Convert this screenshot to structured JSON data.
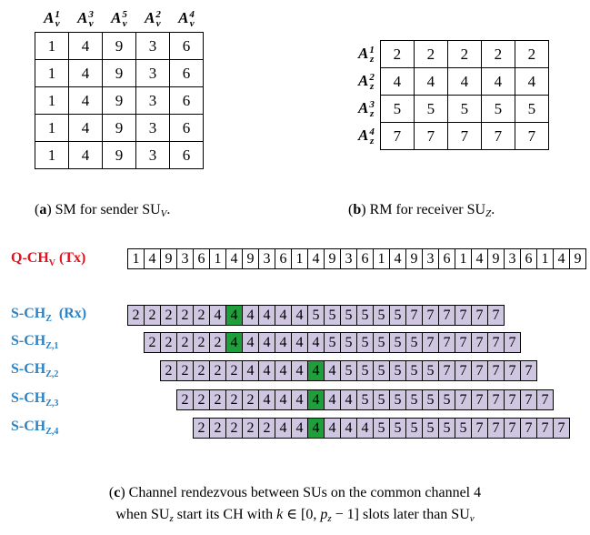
{
  "table_a": {
    "headers": [
      {
        "base": "A",
        "sub": "v",
        "sup": "1"
      },
      {
        "base": "A",
        "sub": "v",
        "sup": "3"
      },
      {
        "base": "A",
        "sub": "v",
        "sup": "5"
      },
      {
        "base": "A",
        "sub": "v",
        "sup": "2"
      },
      {
        "base": "A",
        "sub": "v",
        "sup": "4"
      }
    ],
    "rows": [
      [
        1,
        4,
        9,
        3,
        6
      ],
      [
        1,
        4,
        9,
        3,
        6
      ],
      [
        1,
        4,
        9,
        3,
        6
      ],
      [
        1,
        4,
        9,
        3,
        6
      ],
      [
        1,
        4,
        9,
        3,
        6
      ]
    ]
  },
  "table_b": {
    "rows": [
      {
        "header": {
          "base": "A",
          "sub": "z",
          "sup": "1"
        },
        "values": [
          2,
          2,
          2,
          2,
          2
        ]
      },
      {
        "header": {
          "base": "A",
          "sub": "z",
          "sup": "2"
        },
        "values": [
          4,
          4,
          4,
          4,
          4
        ]
      },
      {
        "header": {
          "base": "A",
          "sub": "z",
          "sup": "3"
        },
        "values": [
          5,
          5,
          5,
          5,
          5
        ]
      },
      {
        "header": {
          "base": "A",
          "sub": "z",
          "sup": "4"
        },
        "values": [
          7,
          7,
          7,
          7,
          7
        ]
      }
    ]
  },
  "caption_a": [
    {
      "text": "(",
      "style": "n"
    },
    {
      "text": "a",
      "style": "b"
    },
    {
      "text": ") SM for sender SU",
      "style": "n"
    },
    {
      "text": "V",
      "style": "subi"
    },
    {
      "text": ".",
      "style": "n"
    }
  ],
  "caption_b": [
    {
      "text": "(",
      "style": "n"
    },
    {
      "text": "b",
      "style": "b"
    },
    {
      "text": ") RM for receiver SU",
      "style": "n"
    },
    {
      "text": "Z",
      "style": "subi"
    },
    {
      "text": ".",
      "style": "n"
    }
  ],
  "tx": {
    "label": {
      "main": "Q-CH",
      "sub": "V",
      "suffix": " (Tx)"
    },
    "values": [
      1,
      4,
      9,
      3,
      6,
      1,
      4,
      9,
      3,
      6,
      1,
      4,
      9,
      3,
      6,
      1,
      4,
      9,
      3,
      6,
      1,
      4,
      9,
      3,
      6,
      1,
      4,
      9
    ]
  },
  "rx_rows": [
    {
      "label": {
        "main": "S-CH",
        "sub": "Z",
        "suffix": "  (Rx)"
      },
      "delay": 0,
      "highlight": 6,
      "values": [
        2,
        2,
        2,
        2,
        2,
        4,
        4,
        4,
        4,
        4,
        4,
        5,
        5,
        5,
        5,
        5,
        5,
        7,
        7,
        7,
        7,
        7,
        7
      ]
    },
    {
      "label": {
        "main": "S-CH",
        "sub": "Z,1",
        "suffix": ""
      },
      "delay": 1,
      "highlight": 5,
      "values": [
        2,
        2,
        2,
        2,
        2,
        4,
        4,
        4,
        4,
        4,
        4,
        5,
        5,
        5,
        5,
        5,
        5,
        7,
        7,
        7,
        7,
        7,
        7
      ]
    },
    {
      "label": {
        "main": "S-CH",
        "sub": "Z,2",
        "suffix": ""
      },
      "delay": 2,
      "highlight": 9,
      "values": [
        2,
        2,
        2,
        2,
        2,
        4,
        4,
        4,
        4,
        4,
        4,
        5,
        5,
        5,
        5,
        5,
        5,
        7,
        7,
        7,
        7,
        7,
        7
      ]
    },
    {
      "label": {
        "main": "S-CH",
        "sub": "Z,3",
        "suffix": ""
      },
      "delay": 3,
      "highlight": 8,
      "values": [
        2,
        2,
        2,
        2,
        2,
        4,
        4,
        4,
        4,
        4,
        4,
        5,
        5,
        5,
        5,
        5,
        5,
        7,
        7,
        7,
        7,
        7,
        7
      ]
    },
    {
      "label": {
        "main": "S-CH",
        "sub": "Z,4",
        "suffix": ""
      },
      "delay": 4,
      "highlight": 7,
      "values": [
        2,
        2,
        2,
        2,
        2,
        4,
        4,
        4,
        4,
        4,
        4,
        5,
        5,
        5,
        5,
        5,
        5,
        7,
        7,
        7,
        7,
        7,
        7
      ]
    }
  ],
  "caption_c": [
    [
      {
        "text": "(",
        "style": "n"
      },
      {
        "text": "c",
        "style": "b"
      },
      {
        "text": ") Channel rendezvous between SUs on the common channel 4",
        "style": "n"
      }
    ],
    [
      {
        "text": "when SU",
        "style": "n"
      },
      {
        "text": "z",
        "style": "subi"
      },
      {
        "text": " start its CH with ",
        "style": "n"
      },
      {
        "text": "k",
        "style": "i"
      },
      {
        "text": " ∈ [0, ",
        "style": "n"
      },
      {
        "text": "p",
        "style": "i"
      },
      {
        "text": "z",
        "style": "subi"
      },
      {
        "text": " − 1] slots later than SU",
        "style": "n"
      },
      {
        "text": "v",
        "style": "subi"
      }
    ]
  ]
}
